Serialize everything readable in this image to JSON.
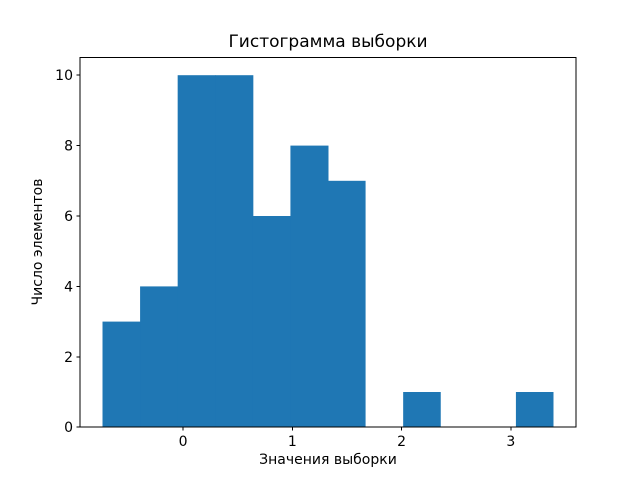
{
  "chart_data": {
    "type": "bar",
    "subtype": "histogram",
    "title": "Гистограмма выборки",
    "xlabel": "Значения выборки",
    "ylabel": "Число элементов",
    "bin_edges": [
      -0.738,
      -0.394,
      -0.05,
      0.294,
      0.638,
      0.982,
      1.326,
      1.67,
      2.014,
      2.358,
      2.702,
      3.046,
      3.39
    ],
    "counts": [
      3,
      4,
      10,
      10,
      6,
      8,
      7,
      0,
      1,
      0,
      0,
      1
    ],
    "total_samples": 50,
    "xlim": [
      -0.944,
      3.596
    ],
    "ylim": [
      0,
      10.5
    ],
    "xticks": [
      0,
      1,
      2,
      3
    ],
    "yticks": [
      0,
      2,
      4,
      6,
      8,
      10
    ],
    "grid": false,
    "legend": null,
    "colors": {
      "bar": "#1f77b4",
      "axes": "#000000",
      "text": "#000000",
      "background": "#ffffff"
    }
  }
}
